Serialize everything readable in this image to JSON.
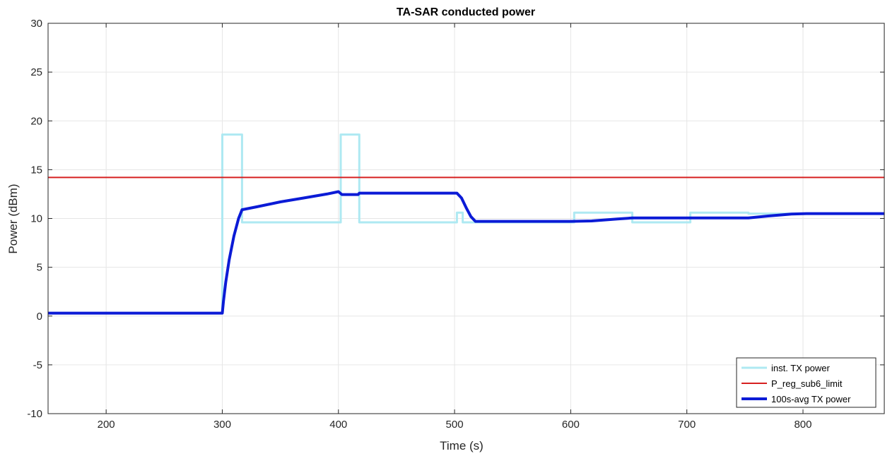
{
  "chart_data": {
    "type": "line",
    "title": "TA-SAR conducted power",
    "xlabel": "Time (s)",
    "ylabel": "Power (dBm)",
    "xlim": [
      150,
      870
    ],
    "ylim": [
      -10,
      30
    ],
    "xticks": [
      200,
      300,
      400,
      500,
      600,
      700,
      800
    ],
    "yticks": [
      -10,
      -5,
      0,
      5,
      10,
      15,
      20,
      25,
      30
    ],
    "grid": true,
    "legend_position": "bottom-right",
    "series": [
      {
        "name": "inst. TX power",
        "color": "#aee9f2",
        "width": 3,
        "x": [
          150,
          300,
          300,
          317,
          317,
          402,
          402,
          418,
          418,
          502,
          502,
          507,
          507,
          603,
          603,
          653,
          653,
          703,
          703,
          753,
          753,
          870
        ],
        "y": [
          0.3,
          0.3,
          18.6,
          18.6,
          9.6,
          9.6,
          18.6,
          18.6,
          9.6,
          9.6,
          10.6,
          10.6,
          9.6,
          9.6,
          10.6,
          10.6,
          9.6,
          9.6,
          10.6,
          10.6,
          10.5,
          10.5
        ]
      },
      {
        "name": "P_reg_sub6_limit",
        "color": "#d62020",
        "width": 2,
        "x": [
          150,
          870
        ],
        "y": [
          14.2,
          14.2
        ]
      },
      {
        "name": "100s-avg TX power",
        "color": "#0b1bd6",
        "width": 4,
        "x": [
          150,
          300,
          301,
          303,
          306,
          310,
          314,
          317,
          330,
          350,
          370,
          390,
          400,
          403,
          417,
          418,
          502,
          506,
          510,
          514,
          518,
          600,
          618,
          640,
          653,
          700,
          753,
          770,
          790,
          803,
          870
        ],
        "y": [
          0.3,
          0.3,
          1.5,
          3.5,
          5.8,
          8.2,
          10.0,
          10.9,
          11.2,
          11.7,
          12.1,
          12.5,
          12.75,
          12.45,
          12.45,
          12.6,
          12.6,
          12.1,
          11.1,
          10.2,
          9.7,
          9.7,
          9.75,
          9.95,
          10.05,
          10.05,
          10.05,
          10.25,
          10.45,
          10.5,
          10.5
        ]
      }
    ]
  }
}
